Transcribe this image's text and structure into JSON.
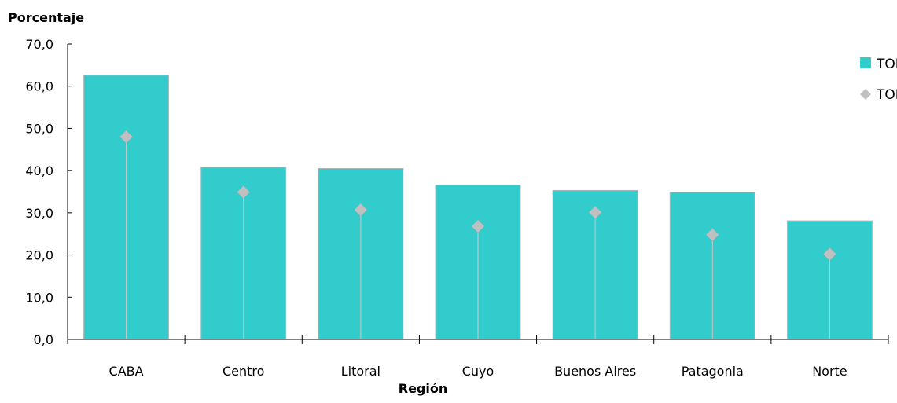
{
  "chart_data": {
    "type": "bar",
    "title": "",
    "ylabel": "Porcentaje",
    "xlabel": "Región",
    "categories": [
      "CABA",
      "Centro",
      "Litoral",
      "Cuyo",
      "Buenos Aires",
      "Patagonia",
      "Norte"
    ],
    "series": [
      {
        "name": "TOH",
        "mark": "bar",
        "color": "#33CCCC",
        "values": [
          62.6,
          40.8,
          40.5,
          36.6,
          35.3,
          34.9,
          28.1
        ]
      },
      {
        "name": "TOP",
        "mark": "diamond",
        "color": "#C0C0C0",
        "values": [
          48.0,
          34.9,
          30.7,
          26.8,
          30.1,
          24.8,
          20.2
        ]
      }
    ],
    "ylim": [
      0,
      70
    ],
    "yticks": [
      "0,0",
      "10,0",
      "20,0",
      "30,0",
      "40,0",
      "50,0",
      "60,0",
      "70,0"
    ],
    "grid": false,
    "legend_position": "top-right"
  }
}
